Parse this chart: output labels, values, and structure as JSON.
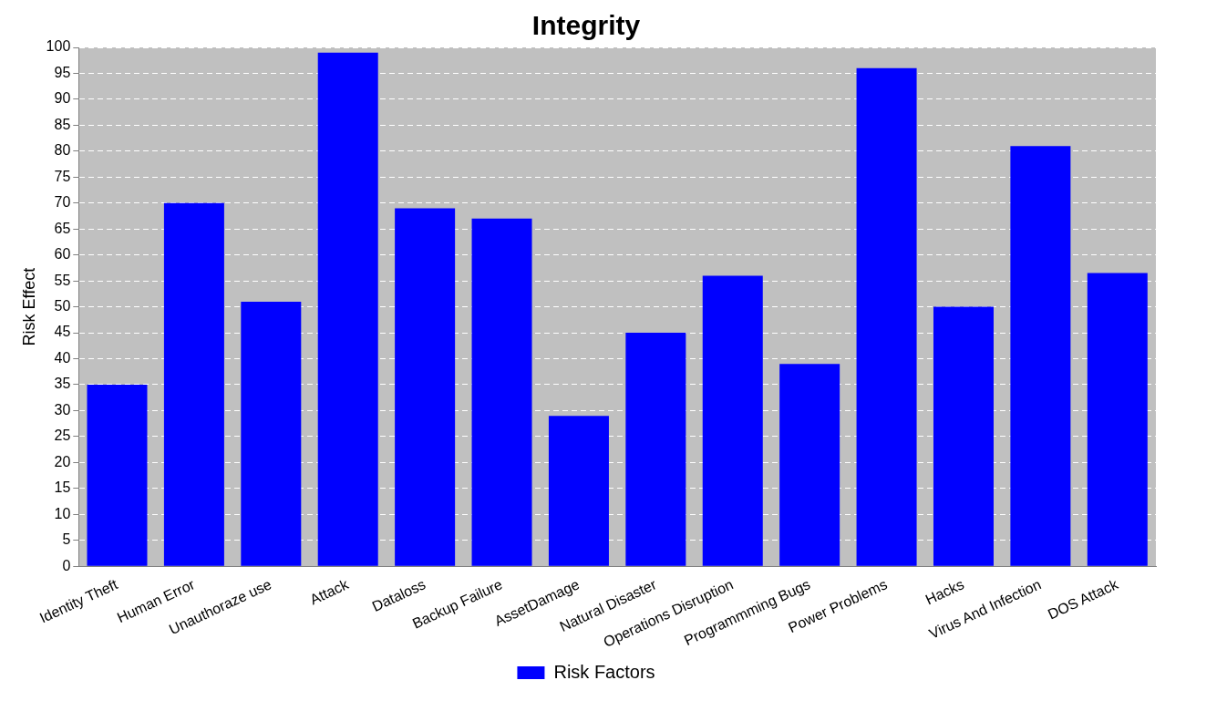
{
  "chart_data": {
    "type": "bar",
    "title": "Integrity",
    "ylabel": "Risk Effect",
    "categories": [
      "Identity Theft",
      "Human Error",
      "Unauthoraze use",
      "Attack",
      "Dataloss",
      "Backup Failure",
      "AssetDamage",
      "Natural Disaster",
      "Operations Disruption",
      "Programmming Bugs",
      "Power Problems",
      "Hacks",
      "Virus And Infection",
      "DOS Attack"
    ],
    "series": [
      {
        "name": "Risk Factors",
        "color": "#0000ff",
        "values": [
          35,
          70,
          51,
          99,
          69,
          67,
          29,
          45,
          56,
          39,
          96,
          50,
          81,
          56.5
        ]
      }
    ],
    "ylim": [
      0,
      100
    ],
    "yticks": [
      0,
      5,
      10,
      15,
      20,
      25,
      30,
      35,
      40,
      45,
      50,
      55,
      60,
      65,
      70,
      75,
      80,
      85,
      90,
      95,
      100
    ],
    "grid": "y",
    "legend": "bottom"
  }
}
